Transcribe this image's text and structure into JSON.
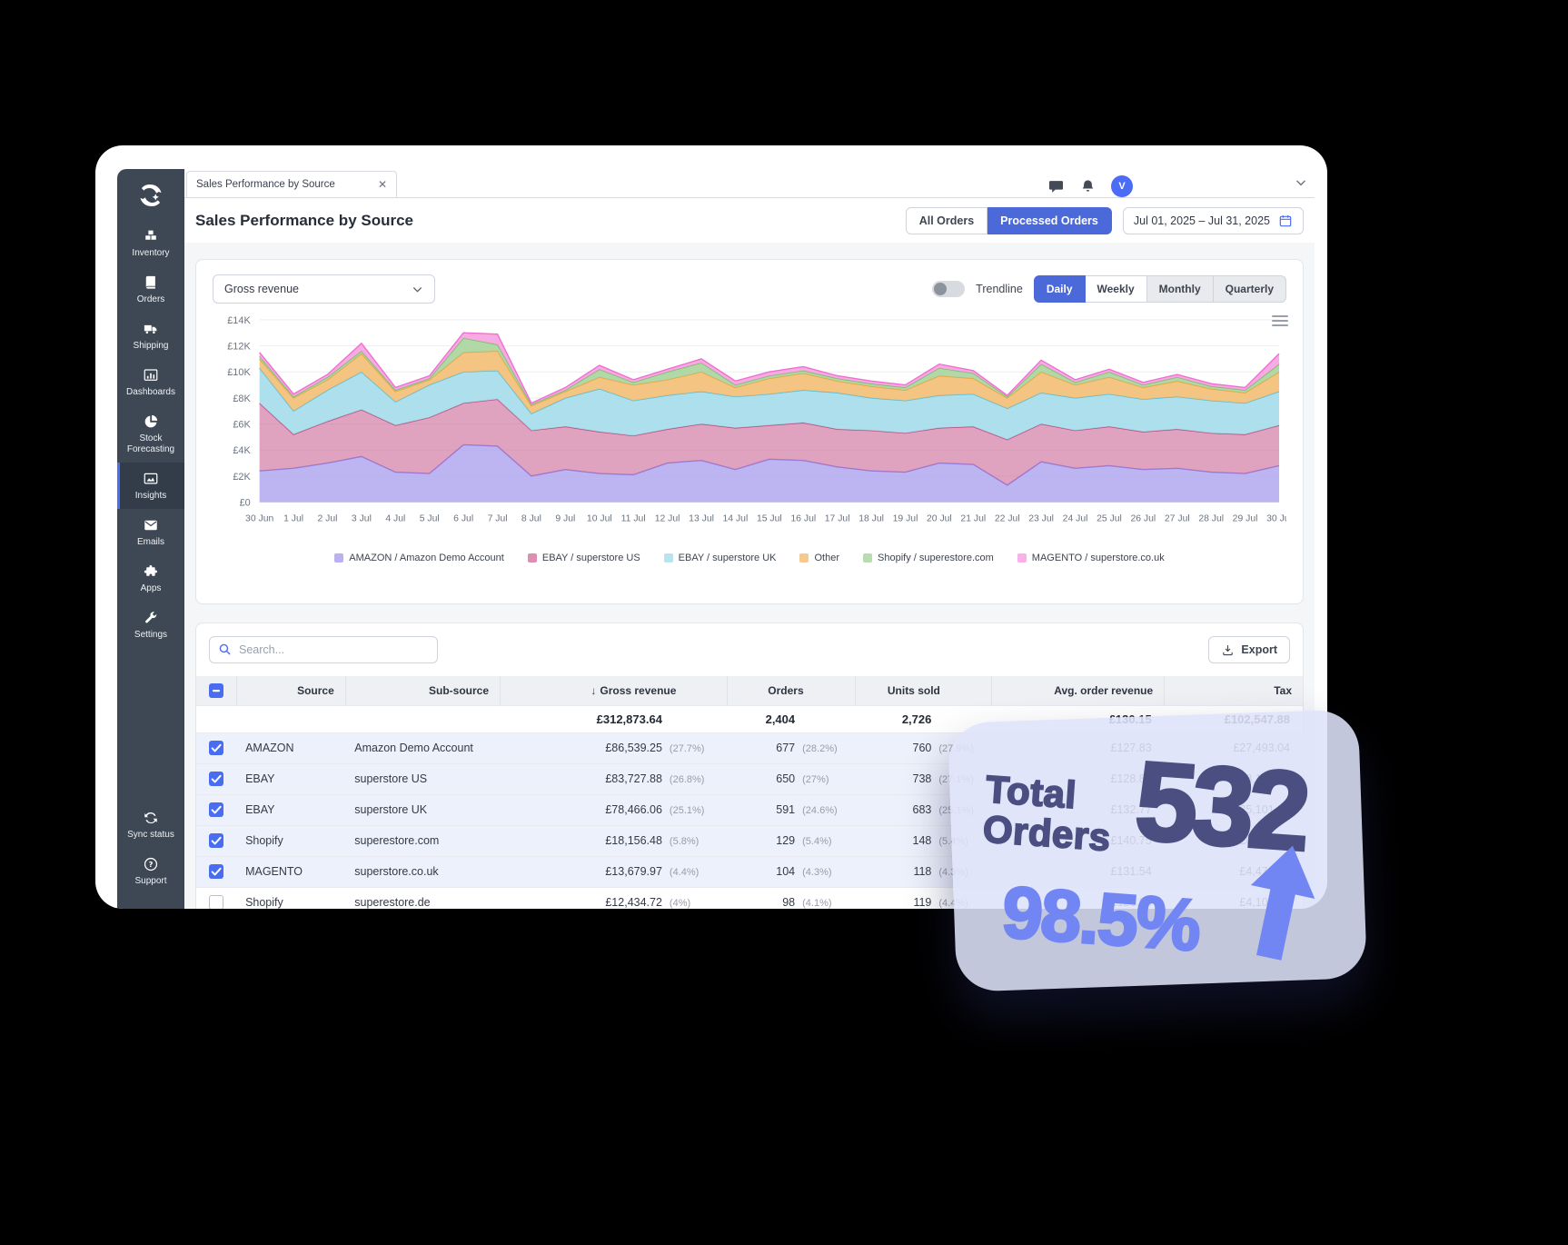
{
  "window": {
    "tab_title": "Sales Performance by Source"
  },
  "topbar": {
    "avatar_initial": "V"
  },
  "sidebar": {
    "items": [
      {
        "label": "Inventory",
        "icon": "inventory-icon"
      },
      {
        "label": "Orders",
        "icon": "orders-icon"
      },
      {
        "label": "Shipping",
        "icon": "shipping-icon"
      },
      {
        "label": "Dashboards",
        "icon": "dashboards-icon"
      },
      {
        "label": "Stock Forecasting",
        "icon": "stock-forecasting-icon"
      },
      {
        "label": "Insights",
        "icon": "insights-icon",
        "active": true
      },
      {
        "label": "Emails",
        "icon": "emails-icon"
      },
      {
        "label": "Apps",
        "icon": "apps-icon"
      },
      {
        "label": "Settings",
        "icon": "settings-icon"
      }
    ],
    "bottom_items": [
      {
        "label": "Sync status",
        "icon": "sync-icon"
      },
      {
        "label": "Support",
        "icon": "support-icon"
      }
    ]
  },
  "header": {
    "title": "Sales Performance by Source",
    "filter_buttons": [
      {
        "label": "All Orders",
        "active": false
      },
      {
        "label": "Processed Orders",
        "active": true
      }
    ],
    "date_range": "Jul 01, 2025 – Jul 31, 2025"
  },
  "chart_card": {
    "metric_selector": "Gross revenue",
    "trendline_label": "Trendline",
    "granularity": [
      {
        "label": "Daily",
        "active": true
      },
      {
        "label": "Weekly",
        "white": true
      },
      {
        "label": "Monthly"
      },
      {
        "label": "Quarterly"
      }
    ]
  },
  "chart_data": {
    "type": "area",
    "stacked": true,
    "title": "",
    "grid": true,
    "legend_position": "bottom",
    "ylim": [
      0,
      14000
    ],
    "yticks": [
      "£0",
      "£2K",
      "£4K",
      "£6K",
      "£8K",
      "£10K",
      "£12K",
      "£14K"
    ],
    "x": [
      "30 Jun",
      "1 Jul",
      "2 Jul",
      "3 Jul",
      "4 Jul",
      "5 Jul",
      "6 Jul",
      "7 Jul",
      "8 Jul",
      "9 Jul",
      "10 Jul",
      "11 Jul",
      "12 Jul",
      "13 Jul",
      "14 Jul",
      "15 Jul",
      "16 Jul",
      "17 Jul",
      "18 Jul",
      "19 Jul",
      "20 Jul",
      "21 Jul",
      "22 Jul",
      "23 Jul",
      "24 Jul",
      "25 Jul",
      "26 Jul",
      "27 Jul",
      "28 Jul",
      "29 Jul",
      "30 Jul"
    ],
    "series": [
      {
        "name": "AMAZON / Amazon Demo Account",
        "fill": "#aca3ee",
        "stroke": "#8d80e6",
        "swatch": "#b9b2ef",
        "opacity": 0.8,
        "values": [
          2400,
          2600,
          3000,
          3500,
          2300,
          2200,
          4400,
          4300,
          2000,
          2500,
          2200,
          2100,
          3000,
          3200,
          2500,
          3300,
          3200,
          2700,
          2400,
          2300,
          3000,
          2900,
          1300,
          3100,
          2600,
          2800,
          2500,
          2600,
          2300,
          2200,
          2800
        ]
      },
      {
        "name": "EBAY / superstore US",
        "fill": "#cc6695",
        "stroke": "#bb4a7e",
        "swatch": "#dd8fb2",
        "opacity": 0.6,
        "values": [
          5200,
          2600,
          3200,
          3600,
          3600,
          4300,
          3200,
          3600,
          3500,
          3300,
          3200,
          3000,
          2600,
          2800,
          3200,
          2600,
          2900,
          2900,
          3100,
          3000,
          2700,
          2900,
          3500,
          2900,
          2900,
          3000,
          2900,
          3000,
          3000,
          3000,
          3100
        ]
      },
      {
        "name": "EBAY / superstore UK",
        "fill": "#9fdbe9",
        "stroke": "#54bdd6",
        "swatch": "#b8e4ef",
        "opacity": 0.85,
        "values": [
          2700,
          1800,
          2400,
          2900,
          1800,
          2500,
          2400,
          2200,
          1300,
          2200,
          3300,
          2700,
          2600,
          2500,
          2400,
          2400,
          2500,
          2800,
          2500,
          2500,
          2500,
          2500,
          2400,
          2400,
          2500,
          2500,
          2500,
          2500,
          2500,
          2400,
          2600
        ]
      },
      {
        "name": "Other",
        "fill": "#f3be74",
        "stroke": "#e9a33c",
        "swatch": "#f6c98e",
        "opacity": 0.9,
        "values": [
          700,
          1000,
          800,
          1400,
          800,
          400,
          1500,
          1500,
          600,
          500,
          900,
          1200,
          1200,
          1500,
          700,
          1200,
          1300,
          900,
          900,
          800,
          1500,
          1200,
          800,
          1600,
          1000,
          1300,
          900,
          1200,
          900,
          800,
          1500
        ]
      },
      {
        "name": "Shopify / superestore.com",
        "fill": "#a9d59d",
        "stroke": "#74bd63",
        "swatch": "#b8dcae",
        "opacity": 0.9,
        "values": [
          200,
          100,
          200,
          200,
          100,
          100,
          1100,
          500,
          100,
          100,
          600,
          200,
          600,
          700,
          200,
          200,
          200,
          200,
          200,
          200,
          600,
          400,
          100,
          600,
          200,
          400,
          200,
          300,
          200,
          200,
          600
        ]
      },
      {
        "name": "MAGENTO / superstore.co.uk",
        "fill": "#f7a2e0",
        "stroke": "#ef6fd0",
        "swatch": "#fab0e8",
        "opacity": 0.9,
        "values": [
          300,
          200,
          200,
          600,
          200,
          200,
          400,
          800,
          100,
          200,
          300,
          200,
          200,
          300,
          300,
          300,
          300,
          200,
          200,
          200,
          300,
          200,
          100,
          300,
          200,
          200,
          200,
          200,
          200,
          200,
          800
        ]
      }
    ]
  },
  "table_card": {
    "search_placeholder": "Search...",
    "export_label": "Export",
    "columns": [
      {
        "label": "Source"
      },
      {
        "label": "Sub-source"
      },
      {
        "label": "Gross revenue",
        "sort": "desc"
      },
      {
        "label": "Orders"
      },
      {
        "label": "Units sold"
      },
      {
        "label": "Avg. order revenue"
      },
      {
        "label": "Tax"
      }
    ],
    "totals": {
      "gross": "£312,873.64",
      "orders": "2,404",
      "units": "2,726",
      "avg": "£130.15",
      "tax": "£102,547.88"
    },
    "rows": [
      {
        "checked": true,
        "source": "AMAZON",
        "sub": "Amazon Demo Account",
        "gross": "£86,539.25",
        "gross_pct": "(27.7%)",
        "orders": "677",
        "orders_pct": "(28.2%)",
        "units": "760",
        "units_pct": "(27.9%)",
        "avg": "£127.83",
        "tax": "£27,493.04"
      },
      {
        "checked": true,
        "source": "EBAY",
        "sub": "superstore US",
        "gross": "£83,727.88",
        "gross_pct": "(26.8%)",
        "orders": "650",
        "orders_pct": "(27%)",
        "units": "738",
        "units_pct": "(27.1%)",
        "avg": "£128.81",
        "tax": "£28,185.55"
      },
      {
        "checked": true,
        "source": "EBAY",
        "sub": "superstore UK",
        "gross": "£78,466.06",
        "gross_pct": "(25.1%)",
        "orders": "591",
        "orders_pct": "(24.6%)",
        "units": "683",
        "units_pct": "(25.1%)",
        "avg": "£132.77",
        "tax": "£25,101.95"
      },
      {
        "checked": true,
        "source": "Shopify",
        "sub": "superestore.com",
        "gross": "£18,156.48",
        "gross_pct": "(5.8%)",
        "orders": "129",
        "orders_pct": "(5.4%)",
        "units": "148",
        "units_pct": "(5.4%)",
        "avg": "£140.75",
        "tax": "£6,879.01"
      },
      {
        "checked": true,
        "source": "MAGENTO",
        "sub": "superstore.co.uk",
        "gross": "£13,679.97",
        "gross_pct": "(4.4%)",
        "orders": "104",
        "orders_pct": "(4.3%)",
        "units": "118",
        "units_pct": "(4.3%)",
        "avg": "£131.54",
        "tax": "£4,479.49"
      },
      {
        "checked": false,
        "source": "Shopify",
        "sub": "superestore.de",
        "gross": "£12,434.72",
        "gross_pct": "(4%)",
        "orders": "98",
        "orders_pct": "(4.1%)",
        "units": "119",
        "units_pct": "(4.4%)",
        "avg": "£126.88",
        "tax": "£4,103.19"
      }
    ]
  },
  "overlay": {
    "line1": "Total",
    "line2": "Orders",
    "value": "532",
    "percent": "98.5%"
  },
  "colors": {
    "accent_blue": "#4c69da",
    "checkbox_blue": "#4a6cf0",
    "sidebar_bg": "#3e4855",
    "stat_navy": "#4a4e80",
    "stat_periwinkle": "#7186f3"
  }
}
